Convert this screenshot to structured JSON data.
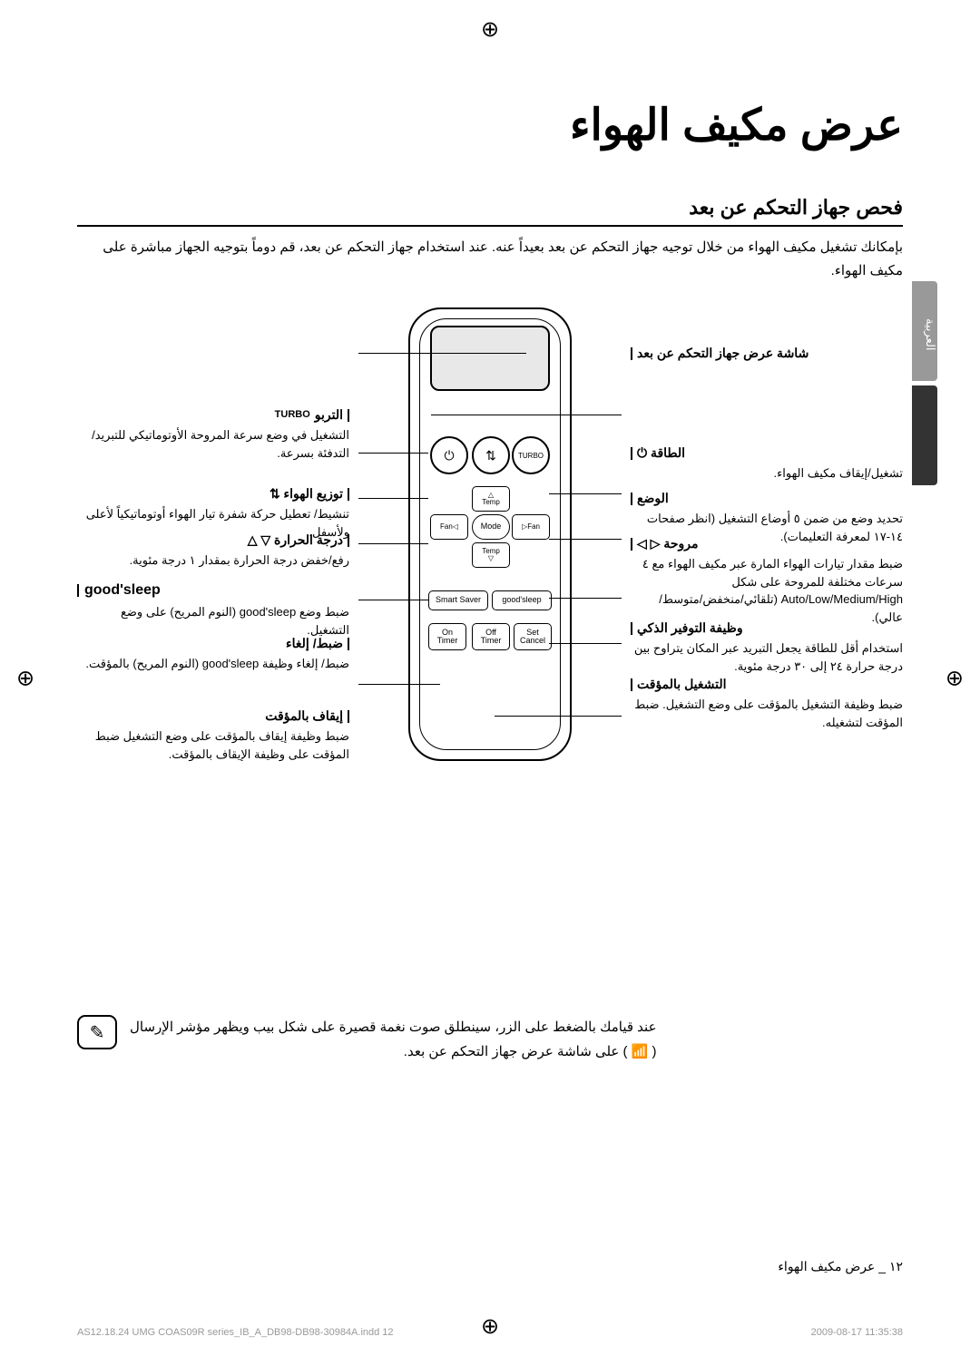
{
  "title": "عرض مكيف الهواء",
  "section_title": "فحص جهاز التحكم عن بعد",
  "intro": "بإمكانك تشغيل مكيف الهواء من خلال توجيه جهاز التحكم عن بعد بعيداً عنه. عند استخدام جهاز التحكم عن بعد، قم دوماً بتوجيه الجهاز مباشرة على مكيف الهواء.",
  "side_tab": "العربية",
  "remote": {
    "mode": "Mode",
    "temp_up": "△\nTemp",
    "temp_dn": "Temp\n▽",
    "fan_l": "◁Fan",
    "fan_r": "Fan▷",
    "smart": "Smart Saver",
    "sleep": "good'sleep",
    "on": "On\nTimer",
    "off": "Off\nTimer",
    "set": "Set\nCancel",
    "power_icon": "⏻",
    "mode_top_icon": "⇅",
    "turbo_icon": "TURBO"
  },
  "callouts_right": [
    {
      "lbl": "شاشة عرض جهاز التحكم عن بعد",
      "desc": ""
    },
    {
      "lbl": "الطاقة ⏻",
      "desc": "تشغيل/إيقاف مكيف الهواء."
    },
    {
      "lbl": "الوضع",
      "desc": "تحديد وضع من ضمن ٥ أوضاع التشغيل (انظر صفحات ١٤-١٧ لمعرفة التعليمات)."
    },
    {
      "lbl": "مروحة ▷ ◁",
      "desc": "ضبط مقدار تيارات الهواء المارة عبر مكيف الهواء مع ٤ سرعات مختلفة للمروحة على شكل Auto/Low/Medium/High (تلقائي/منخفض/متوسط/عالي)."
    },
    {
      "lbl": "وظيفة التوفير الذكي",
      "desc": "استخدام أقل للطاقة يجعل التبريد عبر المكان يتراوح بين درجة حرارة ٢٤ إلى ٣٠ درجة مئوية."
    },
    {
      "lbl": "التشغيل بالمؤقت",
      "desc": "ضبط وظيفة التشغيل بالمؤقت على وضع التشغيل. ضبط المؤقت لتشغيله."
    }
  ],
  "callouts_left": [
    {
      "lbl": "التربو",
      "icon": "TURBO",
      "desc": "التشغيل في وضع سرعة المروحة الأوتوماتيكي للتبريد/ التدفئة بسرعة."
    },
    {
      "lbl": "توزيع الهواء ⇅",
      "desc": "تنشيط/ تعطيل حركة شفرة تيار الهواء أوتوماتيكياً لأعلى ولأسفل."
    },
    {
      "lbl": "درجة الحرارة ▽ △",
      "desc": "رفع/خفض درجة الحرارة بمقدار ١ درجة مئوية."
    },
    {
      "lbl_en": "good'sleep",
      "desc": "ضبط وضع good'sleep (النوم المريح) على وضع التشغيل."
    },
    {
      "lbl": "ضبط/ إلغاء",
      "desc": "ضبط/ إلغاء وظيفة good'sleep (النوم المريح) بالمؤقت."
    },
    {
      "lbl": "إيقاف بالمؤقت",
      "desc": "ضبط وظيفة إيقاف بالمؤقت على وضع التشغيل ضبط المؤقت على وظيفة الإيقاف بالمؤقت."
    }
  ],
  "note": {
    "line1": "عند قيامك بالضغط على الزر، سينطلق صوت نغمة قصيرة على شكل بيب ويظهر مؤشر الإرسال",
    "line2": "( 📶 ) على شاشة عرض جهاز التحكم عن بعد."
  },
  "page_num": "١٢ _ عرض مكيف الهواء",
  "footer": {
    "left": "AS12.18.24 UMG COAS09R series_IB_A_DB98-DB98-30984A.indd   12",
    "right": "2009-08-17   11:35:38"
  }
}
